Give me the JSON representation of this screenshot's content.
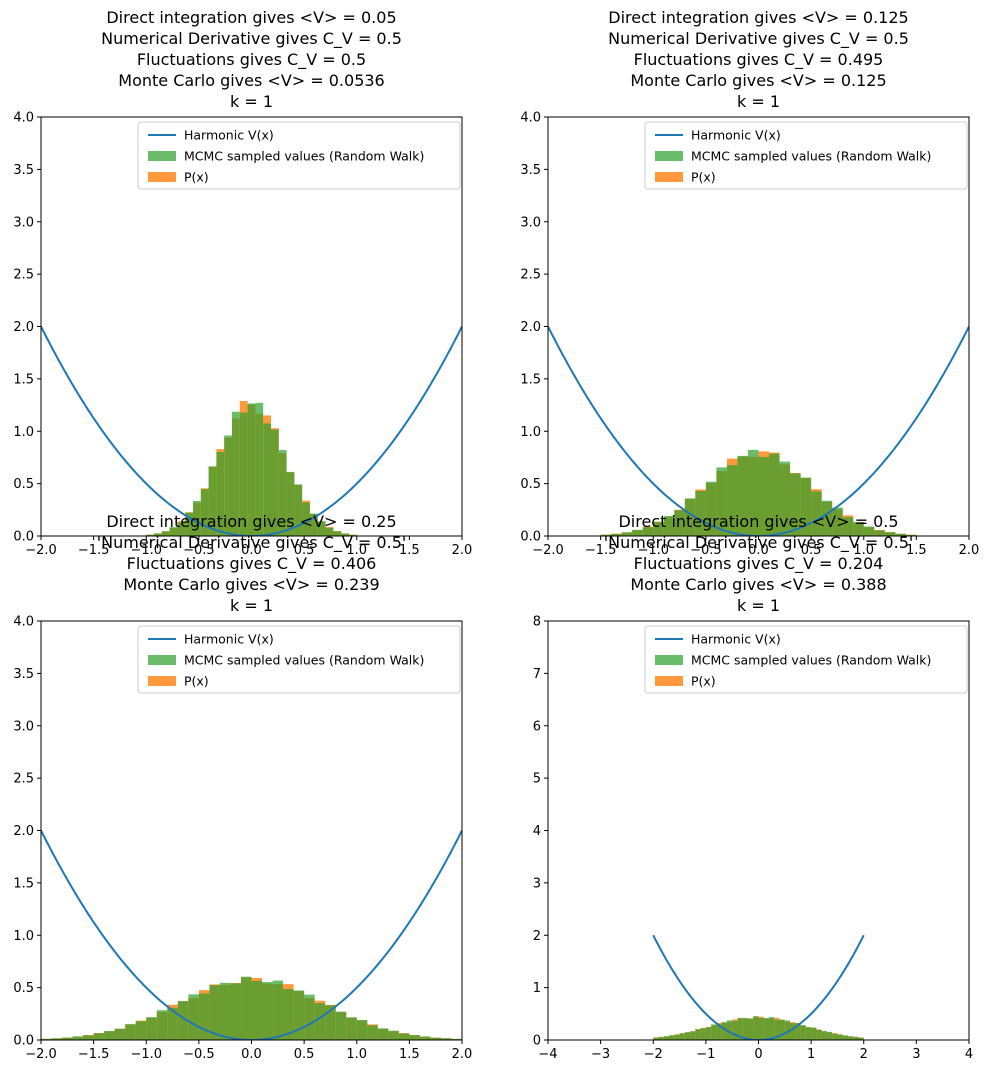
{
  "figure": {
    "colors": {
      "curve": "#1f77b4",
      "mcmc": "#2ca02c",
      "px": "#ff7f0e",
      "axes": "#000000"
    }
  },
  "chart_data": [
    {
      "type": "bar",
      "title_lines": [
        "Direct integration gives <V> = 0.05",
        "Numerical Derivative gives C_V = 0.5",
        "Fluctuations gives C_V = 0.5",
        "Monte Carlo gives <V> = 0.0536",
        "k = 1"
      ],
      "xlim": [
        -2,
        2
      ],
      "ylim": [
        0,
        4
      ],
      "xticks": [
        -2,
        -1.5,
        -1,
        -0.5,
        0,
        0.5,
        1,
        1.5,
        2
      ],
      "xtick_labels": [
        "−2.0",
        "−1.5",
        "−1.0",
        "−0.5",
        "0.0",
        "0.5",
        "1.0",
        "1.5",
        "2.0"
      ],
      "yticks": [
        0,
        0.5,
        1,
        1.5,
        2,
        2.5,
        3,
        3.5,
        4
      ],
      "ytick_labels": [
        "0.0",
        "0.5",
        "1.0",
        "1.5",
        "2.0",
        "2.5",
        "3.0",
        "3.5",
        "4.0"
      ],
      "legend": [
        "Harmonic V(x)",
        "MCMC sampled values (Random Walk)",
        "P(x)"
      ],
      "legend_position": "upper-center",
      "curve": {
        "name": "Harmonic V(x)",
        "formula": "0.5*k*x^2",
        "k": 1,
        "x_range": [
          -2,
          2
        ]
      },
      "hist_sigma": 0.3162,
      "hist_range": [
        -1,
        1
      ],
      "hist_bins": 27
    },
    {
      "type": "bar",
      "title_lines": [
        "Direct integration gives <V> = 0.125",
        "Numerical Derivative gives C_V = 0.5",
        "Fluctuations gives C_V = 0.495",
        "Monte Carlo gives <V> = 0.125",
        "k = 1"
      ],
      "xlim": [
        -2,
        2
      ],
      "ylim": [
        0,
        4
      ],
      "xticks": [
        -2,
        -1.5,
        -1,
        -0.5,
        0,
        0.5,
        1,
        1.5,
        2
      ],
      "xtick_labels": [
        "−2.0",
        "−1.5",
        "−1.0",
        "−0.5",
        "0.0",
        "0.5",
        "1.0",
        "1.5",
        "2.0"
      ],
      "yticks": [
        0,
        0.5,
        1,
        1.5,
        2,
        2.5,
        3,
        3.5,
        4
      ],
      "ytick_labels": [
        "0.0",
        "0.5",
        "1.0",
        "1.5",
        "2.0",
        "2.5",
        "3.0",
        "3.5",
        "4.0"
      ],
      "legend": [
        "Harmonic V(x)",
        "MCMC sampled values (Random Walk)",
        "P(x)"
      ],
      "legend_position": "upper-center",
      "curve": {
        "name": "Harmonic V(x)",
        "formula": "0.5*k*x^2",
        "k": 1,
        "x_range": [
          -2,
          2
        ]
      },
      "hist_sigma": 0.5,
      "hist_range": [
        -1.5,
        1.5
      ],
      "hist_bins": 30
    },
    {
      "type": "bar",
      "title_lines": [
        "Direct integration gives <V> = 0.25",
        "'Numerical Derivative gives C_V = 0.5'",
        "Fluctuations gives C_V = 0.406",
        "Monte Carlo gives <V> = 0.239",
        "k = 1"
      ],
      "xlim": [
        -2,
        2
      ],
      "ylim": [
        0,
        4
      ],
      "xticks": [
        -2,
        -1.5,
        -1,
        -0.5,
        0,
        0.5,
        1,
        1.5,
        2
      ],
      "xtick_labels": [
        "−2.0",
        "−1.5",
        "−1.0",
        "−0.5",
        "0.0",
        "0.5",
        "1.0",
        "1.5",
        "2.0"
      ],
      "yticks": [
        0,
        0.5,
        1,
        1.5,
        2,
        2.5,
        3,
        3.5,
        4
      ],
      "ytick_labels": [
        "0.0",
        "0.5",
        "1.0",
        "1.5",
        "2.0",
        "2.5",
        "3.0",
        "3.5",
        "4.0"
      ],
      "legend": [
        "Harmonic V(x)",
        "MCMC sampled values (Random Walk)",
        "P(x)"
      ],
      "legend_position": "upper-center",
      "curve": {
        "name": "Harmonic V(x)",
        "formula": "0.5*k*x^2",
        "k": 1,
        "x_range": [
          -2,
          2
        ]
      },
      "hist_sigma": 0.69,
      "hist_range": [
        -2,
        2
      ],
      "hist_bins": 40
    },
    {
      "type": "bar",
      "title_lines": [
        "Direct integration gives <V> = 0.5",
        "'Numerical Derivative gives C_V = 0.5'",
        "Fluctuations gives C_V = 0.204",
        "Monte Carlo gives <V> = 0.388",
        "k = 1"
      ],
      "xlim": [
        -4,
        4
      ],
      "ylim": [
        0,
        8
      ],
      "xticks": [
        -4,
        -3,
        -2,
        -1,
        0,
        1,
        2,
        3,
        4
      ],
      "xtick_labels": [
        "−4",
        "−3",
        "−2",
        "−1",
        "0",
        "1",
        "2",
        "3",
        "4"
      ],
      "yticks": [
        0,
        1,
        2,
        3,
        4,
        5,
        6,
        7,
        8
      ],
      "ytick_labels": [
        "0",
        "1",
        "2",
        "3",
        "4",
        "5",
        "6",
        "7",
        "8"
      ],
      "legend": [
        "Harmonic V(x)",
        "MCMC sampled values (Random Walk)",
        "P(x)"
      ],
      "legend_position": "upper-center",
      "curve": {
        "name": "Harmonic V(x)",
        "formula": "0.5*k*x^2",
        "k": 1,
        "x_range": [
          -2,
          2
        ]
      },
      "hist_sigma": 0.92,
      "hist_range": [
        -2,
        2
      ],
      "hist_bins": 40
    }
  ]
}
